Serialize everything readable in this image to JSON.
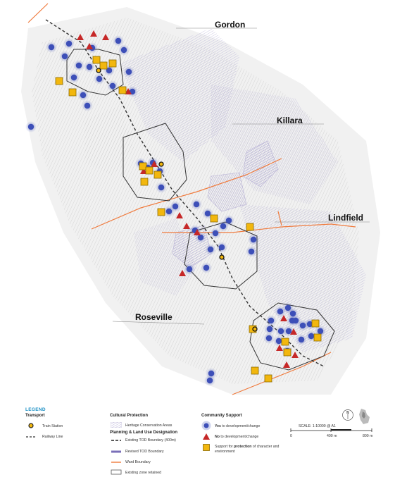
{
  "suburbs": {
    "gordon": "Gordon",
    "killara": "Killara",
    "lindfield": "Lindfield",
    "roseville": "Roseville"
  },
  "legend": {
    "title": "LEGEND",
    "transport": {
      "heading": "Transport",
      "train_station": "Train Station",
      "railway_line": "Railway Line"
    },
    "cultural": {
      "heading": "Cultural Protection",
      "heritage": "Heritage Conservation Areas"
    },
    "planning": {
      "heading": "Planning & Land Use Designation",
      "existing_tod": "Existing TOD Boundary (400m)",
      "revised_tod": "Revised TOD Boundary",
      "ward": "Ward Boundary",
      "existing_zone": "Existing zone retained"
    },
    "community": {
      "heading": "Community Support",
      "yes_bold": "Yes",
      "yes_rest": " to development/change",
      "no_bold": "No",
      "no_rest": " to development/change",
      "support_pre": "Support for ",
      "support_bold": "protection",
      "support_post": " of character and",
      "support_line2": "environment"
    }
  },
  "scale": {
    "text": "SCALE: 1:10000 @ A1",
    "tick0": "0",
    "tick400": "400 m",
    "tick800": "800 m",
    "north": "N"
  },
  "colors": {
    "yes": "#3d4fb8",
    "no": "#c62828",
    "support": "#f2b70e",
    "ward": "#f07a3c",
    "railway": "#333333",
    "heritage": "#b9b3d6",
    "tod": "#222222"
  },
  "markers": {
    "stations": 4,
    "yes_count": 56,
    "no_count": 17,
    "support_count": 20
  }
}
